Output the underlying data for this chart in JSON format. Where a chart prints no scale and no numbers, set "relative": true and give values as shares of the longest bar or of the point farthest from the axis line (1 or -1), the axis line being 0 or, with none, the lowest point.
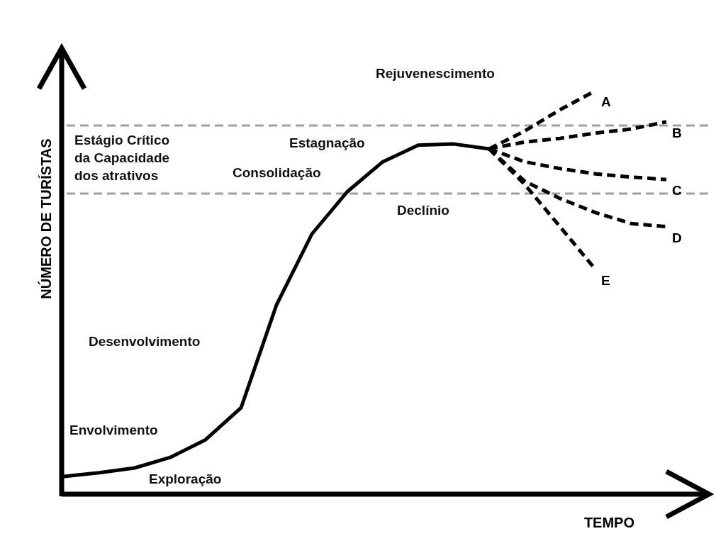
{
  "chart_data": {
    "type": "line",
    "relative": true,
    "xlabel": "TEMPO",
    "ylabel": "NÚMERO DE TURÍSTAS",
    "categories": [
      null,
      null,
      null,
      null,
      null,
      null,
      null,
      null,
      null,
      null,
      null,
      null,
      null,
      null,
      null,
      null,
      null,
      null
    ],
    "series": [
      {
        "color": "#000000",
        "line_style": "solid",
        "values": [
          0.044,
          0.053,
          0.065,
          0.091,
          0.135,
          0.214,
          0.469,
          0.645,
          0.75,
          0.824,
          0.865,
          0.868,
          0.856,
          null,
          null,
          null,
          null,
          null
        ]
      },
      {
        "name": "A",
        "color": "#000000",
        "line_style": "dashed",
        "values": [
          null,
          null,
          null,
          null,
          null,
          null,
          null,
          null,
          null,
          null,
          null,
          null,
          0.856,
          0.9,
          0.953,
          1.0,
          null,
          null
        ]
      },
      {
        "name": "B",
        "color": "#000000",
        "line_style": "dashed",
        "values": [
          null,
          null,
          null,
          null,
          null,
          null,
          null,
          null,
          null,
          null,
          null,
          null,
          0.856,
          0.873,
          0.882,
          0.895,
          0.905,
          0.923
        ]
      },
      {
        "name": "C",
        "color": "#000000",
        "line_style": "dashed",
        "values": [
          null,
          null,
          null,
          null,
          null,
          null,
          null,
          null,
          null,
          null,
          null,
          null,
          0.856,
          0.824,
          0.807,
          0.794,
          0.786,
          0.78
        ]
      },
      {
        "name": "D",
        "color": "#000000",
        "line_style": "dashed",
        "values": [
          null,
          null,
          null,
          null,
          null,
          null,
          null,
          null,
          null,
          null,
          null,
          null,
          0.856,
          0.776,
          0.733,
          0.698,
          0.671,
          0.663
        ]
      },
      {
        "name": "E",
        "color": "#000000",
        "line_style": "dashed",
        "values": [
          null,
          null,
          null,
          null,
          null,
          null,
          null,
          null,
          null,
          null,
          null,
          null,
          0.856,
          0.768,
          0.663,
          0.557,
          null,
          null
        ]
      }
    ],
    "ref_lines": [
      {
        "axis": "y",
        "value": 0.914,
        "color": "#a0a0a0",
        "line_style": "dashed"
      },
      {
        "axis": "y",
        "value": 0.745,
        "color": "#a0a0a0",
        "line_style": "dashed"
      }
    ],
    "annotations": [
      "Rejuvenescimento",
      "Estagnação",
      "Consolidação",
      "Declínio",
      "Desenvolvimento",
      "Envolvimento",
      "Exploração",
      "Estágio Crítico\nda Capacidade\ndos atrativos"
    ]
  }
}
